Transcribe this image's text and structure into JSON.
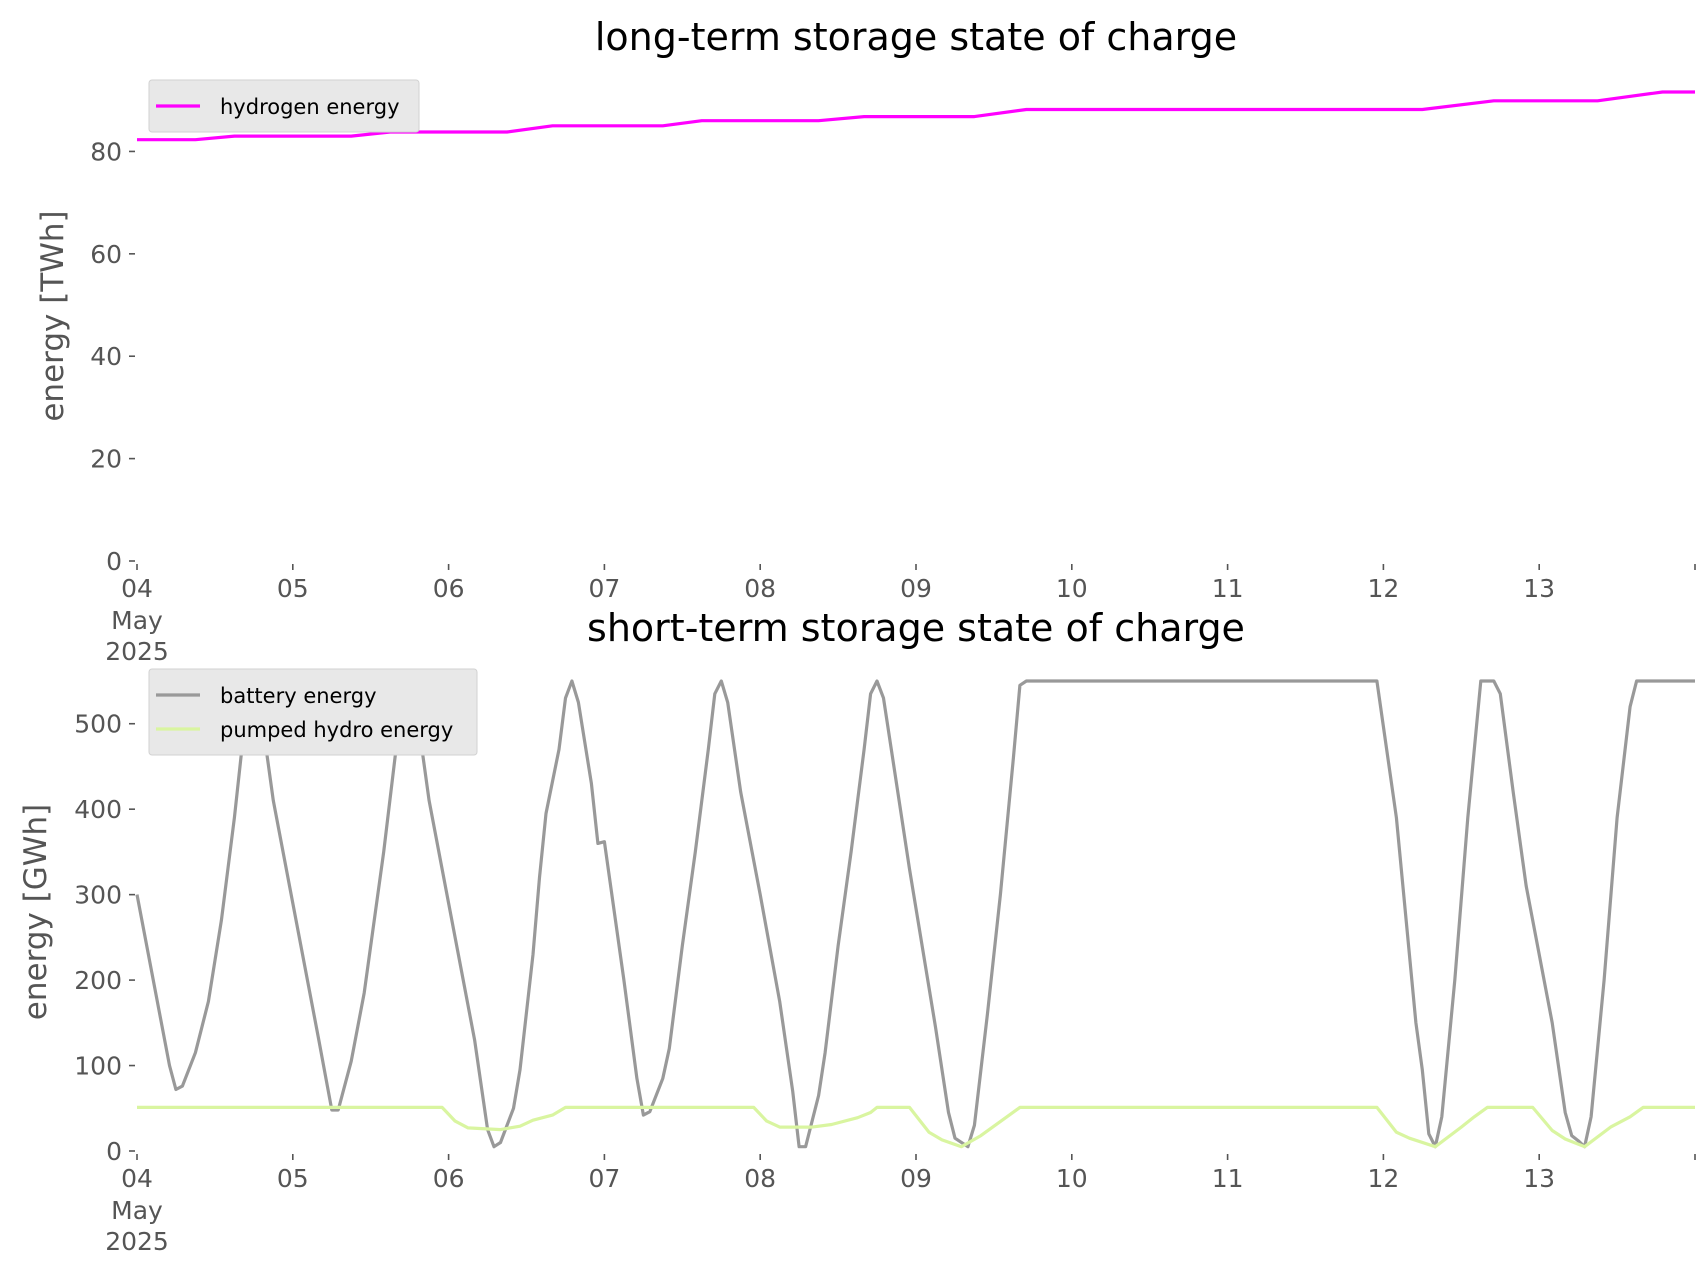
{
  "chart_data": [
    {
      "type": "line",
      "title": "long-term storage state of charge",
      "xlabel": "",
      "ylabel": "energy [TWh]",
      "ylim": [
        0,
        92
      ],
      "xlim": [
        "2025-05-04 00:00",
        "2025-05-14 00:00"
      ],
      "x_ticks": [
        "04",
        "05",
        "06",
        "07",
        "08",
        "09",
        "10",
        "11",
        "12",
        "13"
      ],
      "x_tick_extra": [
        "May",
        "2025"
      ],
      "y_ticks": [
        0,
        20,
        40,
        60,
        80
      ],
      "grid": false,
      "legend_position": "upper left",
      "series": [
        {
          "name": "hydrogen energy",
          "color": "#ff00ff",
          "points": [
            [
              "2025-05-04 00:00",
              82.3
            ],
            [
              "2025-05-04 09:00",
              82.3
            ],
            [
              "2025-05-04 15:00",
              83.0
            ],
            [
              "2025-05-05 09:00",
              83.0
            ],
            [
              "2025-05-05 15:00",
              83.8
            ],
            [
              "2025-05-06 09:00",
              83.8
            ],
            [
              "2025-05-06 16:00",
              85.0
            ],
            [
              "2025-05-07 09:00",
              85.0
            ],
            [
              "2025-05-07 15:00",
              86.0
            ],
            [
              "2025-05-08 09:00",
              86.0
            ],
            [
              "2025-05-08 16:00",
              86.8
            ],
            [
              "2025-05-09 09:00",
              86.8
            ],
            [
              "2025-05-09 17:00",
              88.2
            ],
            [
              "2025-05-12 06:00",
              88.2
            ],
            [
              "2025-05-12 17:00",
              89.9
            ],
            [
              "2025-05-13 09:00",
              89.9
            ],
            [
              "2025-05-13 19:00",
              91.6
            ],
            [
              "2025-05-14 00:00",
              91.6
            ]
          ]
        }
      ]
    },
    {
      "type": "line",
      "title": "short-term storage state of charge",
      "xlabel": "",
      "ylabel": "energy [GWh]",
      "ylim": [
        0,
        550
      ],
      "xlim": [
        "2025-05-04 00:00",
        "2025-05-14 00:00"
      ],
      "x_ticks": [
        "04",
        "05",
        "06",
        "07",
        "08",
        "09",
        "10",
        "11",
        "12",
        "13"
      ],
      "x_tick_extra": [
        "May",
        "2025"
      ],
      "y_ticks": [
        0,
        100,
        200,
        300,
        400,
        500
      ],
      "grid": false,
      "legend_position": "upper left",
      "series": [
        {
          "name": "battery energy",
          "color": "#999999",
          "points": [
            [
              "2025-05-04 00:00",
              300
            ],
            [
              "2025-05-04 05:00",
              100
            ],
            [
              "2025-05-04 06:00",
              72
            ],
            [
              "2025-05-04 07:00",
              76
            ],
            [
              "2025-05-04 09:00",
              115
            ],
            [
              "2025-05-04 11:00",
              175
            ],
            [
              "2025-05-04 13:00",
              270
            ],
            [
              "2025-05-04 15:00",
              390
            ],
            [
              "2025-05-04 17:00",
              530
            ],
            [
              "2025-05-04 18:00",
              550
            ],
            [
              "2025-05-04 19:00",
              520
            ],
            [
              "2025-05-04 21:00",
              410
            ],
            [
              "2025-05-05 00:00",
              290
            ],
            [
              "2025-05-05 04:00",
              130
            ],
            [
              "2025-05-05 06:00",
              48
            ],
            [
              "2025-05-05 07:00",
              48
            ],
            [
              "2025-05-05 09:00",
              105
            ],
            [
              "2025-05-05 11:00",
              185
            ],
            [
              "2025-05-05 14:00",
              350
            ],
            [
              "2025-05-05 17:00",
              540
            ],
            [
              "2025-05-05 18:00",
              550
            ],
            [
              "2025-05-05 19:00",
              520
            ],
            [
              "2025-05-05 21:00",
              410
            ],
            [
              "2025-05-06 00:00",
              290
            ],
            [
              "2025-05-06 04:00",
              130
            ],
            [
              "2025-05-06 06:00",
              25
            ],
            [
              "2025-05-06 07:00",
              5
            ],
            [
              "2025-05-06 08:00",
              10
            ],
            [
              "2025-05-06 10:00",
              50
            ],
            [
              "2025-05-06 11:00",
              95
            ],
            [
              "2025-05-06 13:00",
              230
            ],
            [
              "2025-05-06 14:00",
              320
            ],
            [
              "2025-05-06 15:00",
              395
            ],
            [
              "2025-05-06 17:00",
              470
            ],
            [
              "2025-05-06 18:00",
              530
            ],
            [
              "2025-05-06 19:00",
              550
            ],
            [
              "2025-05-06 20:00",
              525
            ],
            [
              "2025-05-06 22:00",
              430
            ],
            [
              "2025-05-06 23:00",
              360
            ],
            [
              "2025-05-07 00:00",
              362
            ],
            [
              "2025-05-07 03:00",
              200
            ],
            [
              "2025-05-07 05:00",
              85
            ],
            [
              "2025-05-07 06:00",
              42
            ],
            [
              "2025-05-07 07:00",
              46
            ],
            [
              "2025-05-07 09:00",
              85
            ],
            [
              "2025-05-07 10:00",
              120
            ],
            [
              "2025-05-07 12:00",
              240
            ],
            [
              "2025-05-07 14:00",
              350
            ],
            [
              "2025-05-07 16:00",
              470
            ],
            [
              "2025-05-07 17:00",
              535
            ],
            [
              "2025-05-07 18:00",
              550
            ],
            [
              "2025-05-07 19:00",
              525
            ],
            [
              "2025-05-07 21:00",
              420
            ],
            [
              "2025-05-08 00:00",
              300
            ],
            [
              "2025-05-08 03:00",
              175
            ],
            [
              "2025-05-08 05:00",
              70
            ],
            [
              "2025-05-08 06:00",
              5
            ],
            [
              "2025-05-08 07:00",
              5
            ],
            [
              "2025-05-08 09:00",
              65
            ],
            [
              "2025-05-08 10:00",
              115
            ],
            [
              "2025-05-08 12:00",
              240
            ],
            [
              "2025-05-08 14:00",
              350
            ],
            [
              "2025-05-08 16:00",
              470
            ],
            [
              "2025-05-08 17:00",
              535
            ],
            [
              "2025-05-08 18:00",
              550
            ],
            [
              "2025-05-08 19:00",
              530
            ],
            [
              "2025-05-08 21:00",
              430
            ],
            [
              "2025-05-08 23:00",
              330
            ],
            [
              "2025-05-09 03:00",
              145
            ],
            [
              "2025-05-09 05:00",
              45
            ],
            [
              "2025-05-09 06:00",
              15
            ],
            [
              "2025-05-09 08:00",
              5
            ],
            [
              "2025-05-09 09:00",
              30
            ],
            [
              "2025-05-09 11:00",
              160
            ],
            [
              "2025-05-09 13:00",
              300
            ],
            [
              "2025-05-09 15:00",
              460
            ],
            [
              "2025-05-09 16:00",
              545
            ],
            [
              "2025-05-09 17:00",
              550
            ],
            [
              "2025-05-11 23:00",
              550
            ],
            [
              "2025-05-12 02:00",
              390
            ],
            [
              "2025-05-12 05:00",
              150
            ],
            [
              "2025-05-12 06:00",
              95
            ],
            [
              "2025-05-12 07:00",
              20
            ],
            [
              "2025-05-12 08:00",
              5
            ],
            [
              "2025-05-12 09:00",
              40
            ],
            [
              "2025-05-12 11:00",
              200
            ],
            [
              "2025-05-12 13:00",
              390
            ],
            [
              "2025-05-12 15:00",
              550
            ],
            [
              "2025-05-12 17:00",
              550
            ],
            [
              "2025-05-12 18:00",
              535
            ],
            [
              "2025-05-12 20:00",
              420
            ],
            [
              "2025-05-12 22:00",
              310
            ],
            [
              "2025-05-13 02:00",
              150
            ],
            [
              "2025-05-13 04:00",
              45
            ],
            [
              "2025-05-13 05:00",
              18
            ],
            [
              "2025-05-13 06:00",
              12
            ],
            [
              "2025-05-13 07:00",
              5
            ],
            [
              "2025-05-13 08:00",
              40
            ],
            [
              "2025-05-13 10:00",
              200
            ],
            [
              "2025-05-13 12:00",
              390
            ],
            [
              "2025-05-13 14:00",
              520
            ],
            [
              "2025-05-13 15:00",
              550
            ],
            [
              "2025-05-14 00:00",
              550
            ]
          ]
        },
        {
          "name": "pumped hydro energy",
          "color": "#d9f5a0",
          "points": [
            [
              "2025-05-04 00:00",
              51
            ],
            [
              "2025-05-05 23:00",
              51
            ],
            [
              "2025-05-06 01:00",
              35
            ],
            [
              "2025-05-06 03:00",
              27
            ],
            [
              "2025-05-06 08:00",
              25
            ],
            [
              "2025-05-06 11:00",
              29
            ],
            [
              "2025-05-06 13:00",
              36
            ],
            [
              "2025-05-06 16:00",
              42
            ],
            [
              "2025-05-06 18:00",
              51
            ],
            [
              "2025-05-07 23:00",
              51
            ],
            [
              "2025-05-08 01:00",
              35
            ],
            [
              "2025-05-08 03:00",
              28
            ],
            [
              "2025-05-08 08:00",
              28
            ],
            [
              "2025-05-08 11:00",
              31
            ],
            [
              "2025-05-08 15:00",
              39
            ],
            [
              "2025-05-08 17:00",
              45
            ],
            [
              "2025-05-08 18:00",
              51
            ],
            [
              "2025-05-08 23:00",
              51
            ],
            [
              "2025-05-09 02:00",
              22
            ],
            [
              "2025-05-09 04:00",
              13
            ],
            [
              "2025-05-09 07:00",
              5
            ],
            [
              "2025-05-09 10:00",
              18
            ],
            [
              "2025-05-09 14:00",
              40
            ],
            [
              "2025-05-09 16:00",
              51
            ],
            [
              "2025-05-11 23:00",
              51
            ],
            [
              "2025-05-12 02:00",
              22
            ],
            [
              "2025-05-12 04:00",
              15
            ],
            [
              "2025-05-12 08:00",
              5
            ],
            [
              "2025-05-12 12:00",
              28
            ],
            [
              "2025-05-12 14:00",
              40
            ],
            [
              "2025-05-12 16:00",
              51
            ],
            [
              "2025-05-12 23:00",
              51
            ],
            [
              "2025-05-13 02:00",
              24
            ],
            [
              "2025-05-13 04:00",
              14
            ],
            [
              "2025-05-13 07:00",
              5
            ],
            [
              "2025-05-13 11:00",
              28
            ],
            [
              "2025-05-13 14:00",
              40
            ],
            [
              "2025-05-13 16:00",
              51
            ],
            [
              "2025-05-14 00:00",
              51
            ]
          ]
        }
      ]
    }
  ]
}
